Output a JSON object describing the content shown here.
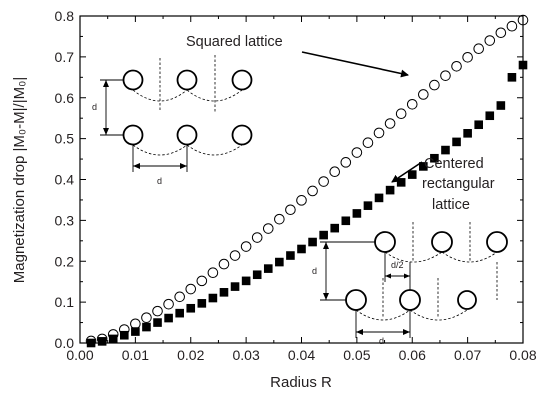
{
  "chart_data": {
    "type": "scatter",
    "xlabel": "Radius R",
    "ylabel": "Magnetization drop |M₀-M|/|M₀|",
    "xlim": [
      0.0,
      0.08
    ],
    "ylim": [
      0.0,
      0.8
    ],
    "xticks": [
      "0.00",
      "0.01",
      "0.02",
      "0.03",
      "0.04",
      "0.05",
      "0.06",
      "0.07",
      "0.08"
    ],
    "yticks": [
      "0.0",
      "0.1",
      "0.2",
      "0.3",
      "0.4",
      "0.5",
      "0.6",
      "0.7",
      "0.8"
    ],
    "grid": false,
    "series": [
      {
        "name": "Squared lattice",
        "marker": "open-circle",
        "x": [
          0.002,
          0.004,
          0.006,
          0.008,
          0.01,
          0.012,
          0.014,
          0.016,
          0.018,
          0.02,
          0.022,
          0.024,
          0.026,
          0.028,
          0.03,
          0.032,
          0.034,
          0.036,
          0.038,
          0.04,
          0.042,
          0.044,
          0.046,
          0.048,
          0.05,
          0.052,
          0.054,
          0.056,
          0.058,
          0.06,
          0.062,
          0.064,
          0.066,
          0.068,
          0.07,
          0.072,
          0.074,
          0.076,
          0.078,
          0.08
        ],
        "y": [
          0.005,
          0.01,
          0.021,
          0.033,
          0.047,
          0.062,
          0.078,
          0.095,
          0.113,
          0.132,
          0.152,
          0.172,
          0.193,
          0.214,
          0.236,
          0.258,
          0.28,
          0.303,
          0.326,
          0.349,
          0.372,
          0.395,
          0.419,
          0.442,
          0.466,
          0.49,
          0.514,
          0.537,
          0.561,
          0.584,
          0.608,
          0.631,
          0.654,
          0.677,
          0.699,
          0.72,
          0.74,
          0.759,
          0.775,
          0.79
        ]
      },
      {
        "name": "Centered rectangular lattice",
        "marker": "filled-square",
        "x": [
          0.002,
          0.004,
          0.006,
          0.008,
          0.01,
          0.012,
          0.014,
          0.016,
          0.018,
          0.02,
          0.022,
          0.024,
          0.026,
          0.028,
          0.03,
          0.032,
          0.034,
          0.036,
          0.038,
          0.04,
          0.042,
          0.044,
          0.046,
          0.048,
          0.05,
          0.052,
          0.054,
          0.056,
          0.058,
          0.06,
          0.062,
          0.064,
          0.066,
          0.068,
          0.07,
          0.072,
          0.074,
          0.076,
          0.078,
          0.08
        ],
        "y": [
          0.0,
          0.004,
          0.01,
          0.019,
          0.028,
          0.039,
          0.05,
          0.061,
          0.073,
          0.085,
          0.097,
          0.11,
          0.124,
          0.138,
          0.152,
          0.167,
          0.182,
          0.198,
          0.214,
          0.23,
          0.247,
          0.264,
          0.281,
          0.299,
          0.317,
          0.336,
          0.355,
          0.374,
          0.393,
          0.412,
          0.432,
          0.452,
          0.472,
          0.492,
          0.513,
          0.534,
          0.556,
          0.581,
          0.65,
          0.68
        ]
      }
    ],
    "annotations": [
      {
        "text": "Squared lattice",
        "target_series": 0
      },
      {
        "text": "Centered",
        "target_series": 1
      },
      {
        "text": "rectangular",
        "target_series": 1
      },
      {
        "text": "lattice",
        "target_series": 1
      }
    ],
    "inset_labels": {
      "square": {
        "vertical": "d",
        "horizontal": "d"
      },
      "centered": {
        "vertical": "d",
        "half": "d/2",
        "horizontal": "d"
      }
    }
  }
}
